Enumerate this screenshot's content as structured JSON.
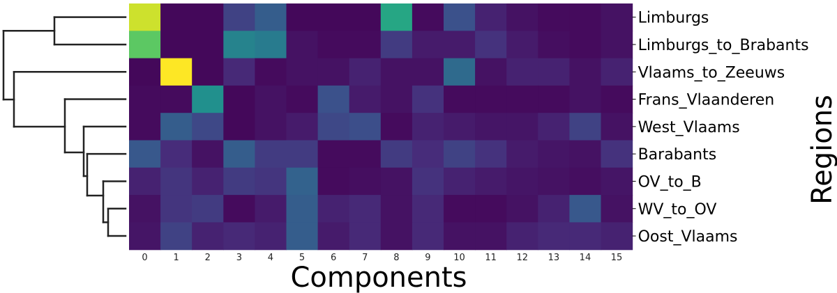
{
  "chart_data": {
    "type": "heatmap",
    "xlabel": "Components",
    "ylabel": "Regions",
    "x_categories": [
      "0",
      "1",
      "2",
      "3",
      "4",
      "5",
      "6",
      "7",
      "8",
      "9",
      "10",
      "11",
      "12",
      "13",
      "14",
      "15"
    ],
    "y_categories": [
      "Limburgs",
      "Limburgs_to_Brabants",
      "Vlaams_to_Zeeuws",
      "Frans_Vlaanderen",
      "West_Vlaams",
      "Barabants",
      "OV_to_B",
      "WV_to_OV",
      "Oost_Vlaams"
    ],
    "colormap": "viridis",
    "value_range": [
      0,
      1
    ],
    "values": [
      [
        0.93,
        0.02,
        0.02,
        0.2,
        0.3,
        0.02,
        0.02,
        0.02,
        0.6,
        0.03,
        0.25,
        0.1,
        0.05,
        0.03,
        0.03,
        0.05
      ],
      [
        0.75,
        0.02,
        0.02,
        0.45,
        0.42,
        0.05,
        0.03,
        0.03,
        0.18,
        0.08,
        0.08,
        0.15,
        0.08,
        0.04,
        0.03,
        0.05
      ],
      [
        0.02,
        1.0,
        0.02,
        0.12,
        0.03,
        0.05,
        0.05,
        0.1,
        0.05,
        0.05,
        0.35,
        0.05,
        0.1,
        0.1,
        0.05,
        0.1
      ],
      [
        0.03,
        0.03,
        0.5,
        0.02,
        0.05,
        0.03,
        0.25,
        0.08,
        0.05,
        0.15,
        0.03,
        0.03,
        0.03,
        0.03,
        0.05,
        0.03
      ],
      [
        0.03,
        0.3,
        0.22,
        0.02,
        0.05,
        0.08,
        0.22,
        0.24,
        0.03,
        0.1,
        0.08,
        0.06,
        0.06,
        0.1,
        0.2,
        0.05
      ],
      [
        0.28,
        0.13,
        0.05,
        0.3,
        0.18,
        0.18,
        0.03,
        0.03,
        0.18,
        0.13,
        0.2,
        0.15,
        0.08,
        0.06,
        0.05,
        0.15
      ],
      [
        0.1,
        0.16,
        0.1,
        0.18,
        0.16,
        0.32,
        0.03,
        0.04,
        0.05,
        0.15,
        0.1,
        0.08,
        0.06,
        0.05,
        0.04,
        0.06
      ],
      [
        0.05,
        0.16,
        0.18,
        0.03,
        0.08,
        0.3,
        0.1,
        0.12,
        0.05,
        0.12,
        0.03,
        0.03,
        0.05,
        0.1,
        0.28,
        0.05
      ],
      [
        0.06,
        0.2,
        0.1,
        0.12,
        0.1,
        0.3,
        0.08,
        0.12,
        0.05,
        0.12,
        0.05,
        0.05,
        0.1,
        0.12,
        0.12,
        0.1
      ]
    ],
    "dendrogram": "row",
    "grid": false,
    "legend": "none"
  }
}
